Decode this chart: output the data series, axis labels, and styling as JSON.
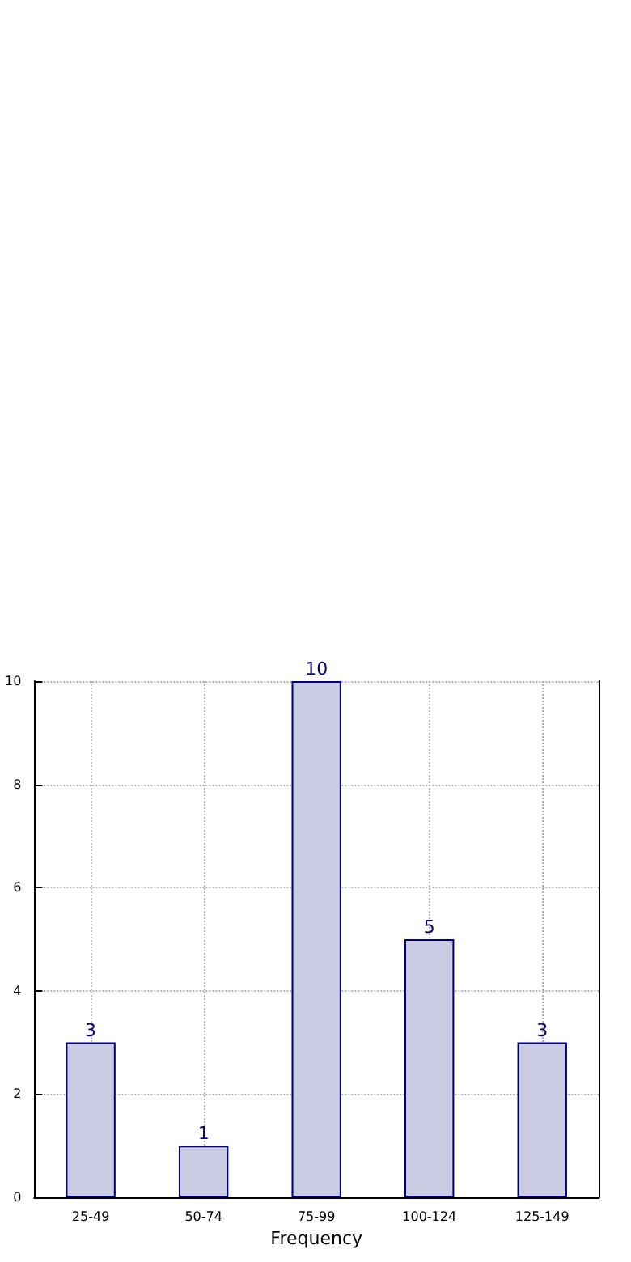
{
  "chart_data": {
    "type": "bar",
    "xlabel": "Frequency",
    "categories": [
      "25-49",
      "50-74",
      "75-99",
      "100-124",
      "125-149"
    ],
    "series": [
      {
        "color": "#cbcbe3",
        "values": [
          3,
          1,
          10,
          5,
          3
        ]
      }
    ],
    "ylim": [
      0,
      10
    ],
    "yticks": [
      0,
      2,
      4,
      6,
      8,
      10
    ],
    "grid": true,
    "data_labels": true,
    "line_style": "dotted"
  }
}
